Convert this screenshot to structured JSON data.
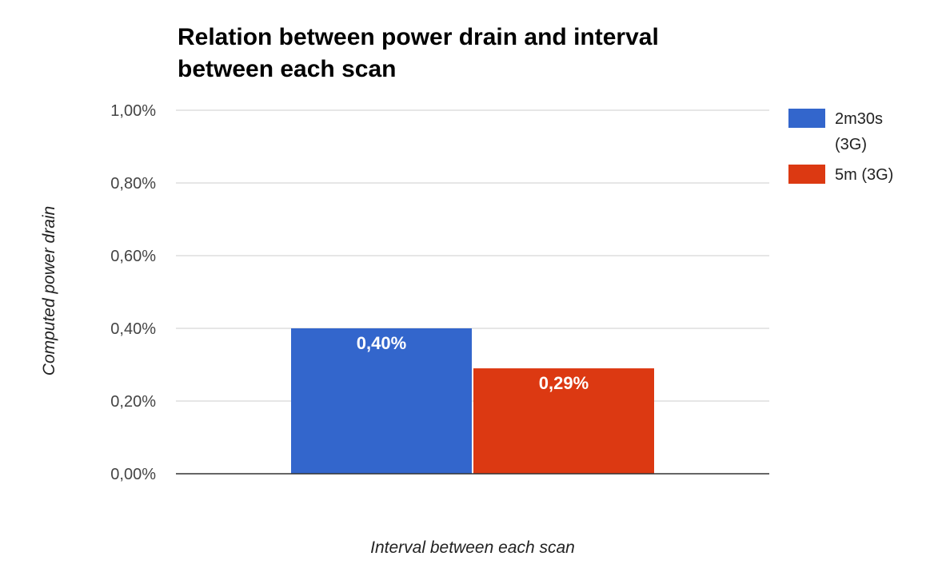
{
  "chart_data": {
    "type": "bar",
    "title_lines": [
      "Relation between power drain and interval",
      "between each scan"
    ],
    "xlabel": "Interval between each scan",
    "ylabel": "Computed power drain",
    "ylim": [
      0,
      1.0
    ],
    "y_ticks": [
      {
        "value": 0.0,
        "label": "0,00%"
      },
      {
        "value": 0.2,
        "label": "0,20%"
      },
      {
        "value": 0.4,
        "label": "0,40%"
      },
      {
        "value": 0.6,
        "label": "0,60%"
      },
      {
        "value": 0.8,
        "label": "0,80%"
      },
      {
        "value": 1.0,
        "label": "1,00%"
      }
    ],
    "grid": true,
    "legend_position": "right",
    "series": [
      {
        "name": "2m30s (3G)",
        "legend_lines": [
          "2m30s",
          "(3G)"
        ],
        "value": 0.4,
        "label": "0,40%",
        "color": "#3366cc"
      },
      {
        "name": "5m (3G)",
        "legend_lines": [
          "5m (3G)"
        ],
        "value": 0.29,
        "label": "0,29%",
        "color": "#dc3912"
      }
    ]
  }
}
